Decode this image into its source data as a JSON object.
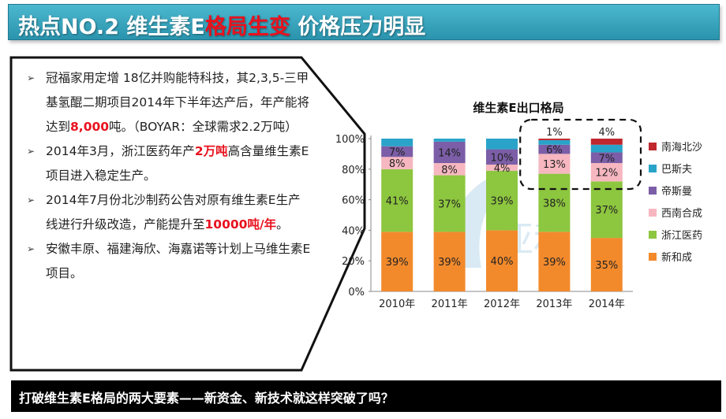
{
  "header": {
    "title_a": "热点NO.2 维生素E",
    "title_b": "格局生变",
    "title_c": " 价格压力明显"
  },
  "bullets": [
    {
      "parts": [
        "冠福家用定增 18亿并购能特科技，其2,3,5-三甲基氢醌二期项目2014年下半年达产后，年产能将达到",
        "8,000",
        "吨。（BOYAR：全球需求2.2万吨）"
      ]
    },
    {
      "parts": [
        "2014年3月，浙江医药年产",
        "2万吨",
        "高含量维生素E项目进入稳定生产。"
      ]
    },
    {
      "parts": [
        "2014年7月份北沙制药公告对原有维生素E生产线进行升级改造，产能提升至",
        "10000吨/年",
        "。"
      ]
    },
    {
      "parts": [
        "安徽丰原、福建海欣、海嘉诺等计划上马维生素E项目。",
        "",
        ""
      ]
    }
  ],
  "footer": {
    "text": "打破维生素E格局的两大要素——新资金、新技术就这样突破了吗？"
  },
  "chart_data": {
    "type": "bar",
    "stacked": true,
    "title": "维生素E出口格局",
    "categories": [
      "2010年",
      "2011年",
      "2012年",
      "2013年",
      "2014年"
    ],
    "ylim": [
      0,
      100
    ],
    "yticks": [
      "0%",
      "20%",
      "40%",
      "60%",
      "80%",
      "100%"
    ],
    "series": [
      {
        "name": "新和成",
        "color": "#f28a2c",
        "values": [
          39,
          39,
          40,
          39,
          35
        ]
      },
      {
        "name": "浙江医药",
        "color": "#8dc63f",
        "values": [
          41,
          37,
          39,
          38,
          37
        ]
      },
      {
        "name": "西南合成",
        "color": "#f7b7c0",
        "values": [
          8,
          8,
          4,
          13,
          12
        ]
      },
      {
        "name": "帝斯曼",
        "color": "#7b5ea7",
        "values": [
          7,
          14,
          10,
          6,
          7
        ]
      },
      {
        "name": "巴斯夫",
        "color": "#2aa3c9",
        "values": [
          5,
          2,
          7,
          3,
          5
        ]
      },
      {
        "name": "南海北沙",
        "color": "#c0282d",
        "values": [
          0,
          0,
          0,
          1,
          4
        ]
      }
    ],
    "labels": [
      [
        "39%",
        "41%",
        "8%",
        "7%",
        "",
        ""
      ],
      [
        "39%",
        "37%",
        "8%",
        "14%",
        "",
        ""
      ],
      [
        "40%",
        "39%",
        "4%",
        "10%",
        "",
        ""
      ],
      [
        "39%",
        "38%",
        "13%",
        "6%",
        "",
        "1%"
      ],
      [
        "35%",
        "37%",
        "12%",
        "7%",
        "",
        "4%"
      ]
    ],
    "legend_position": "right"
  }
}
